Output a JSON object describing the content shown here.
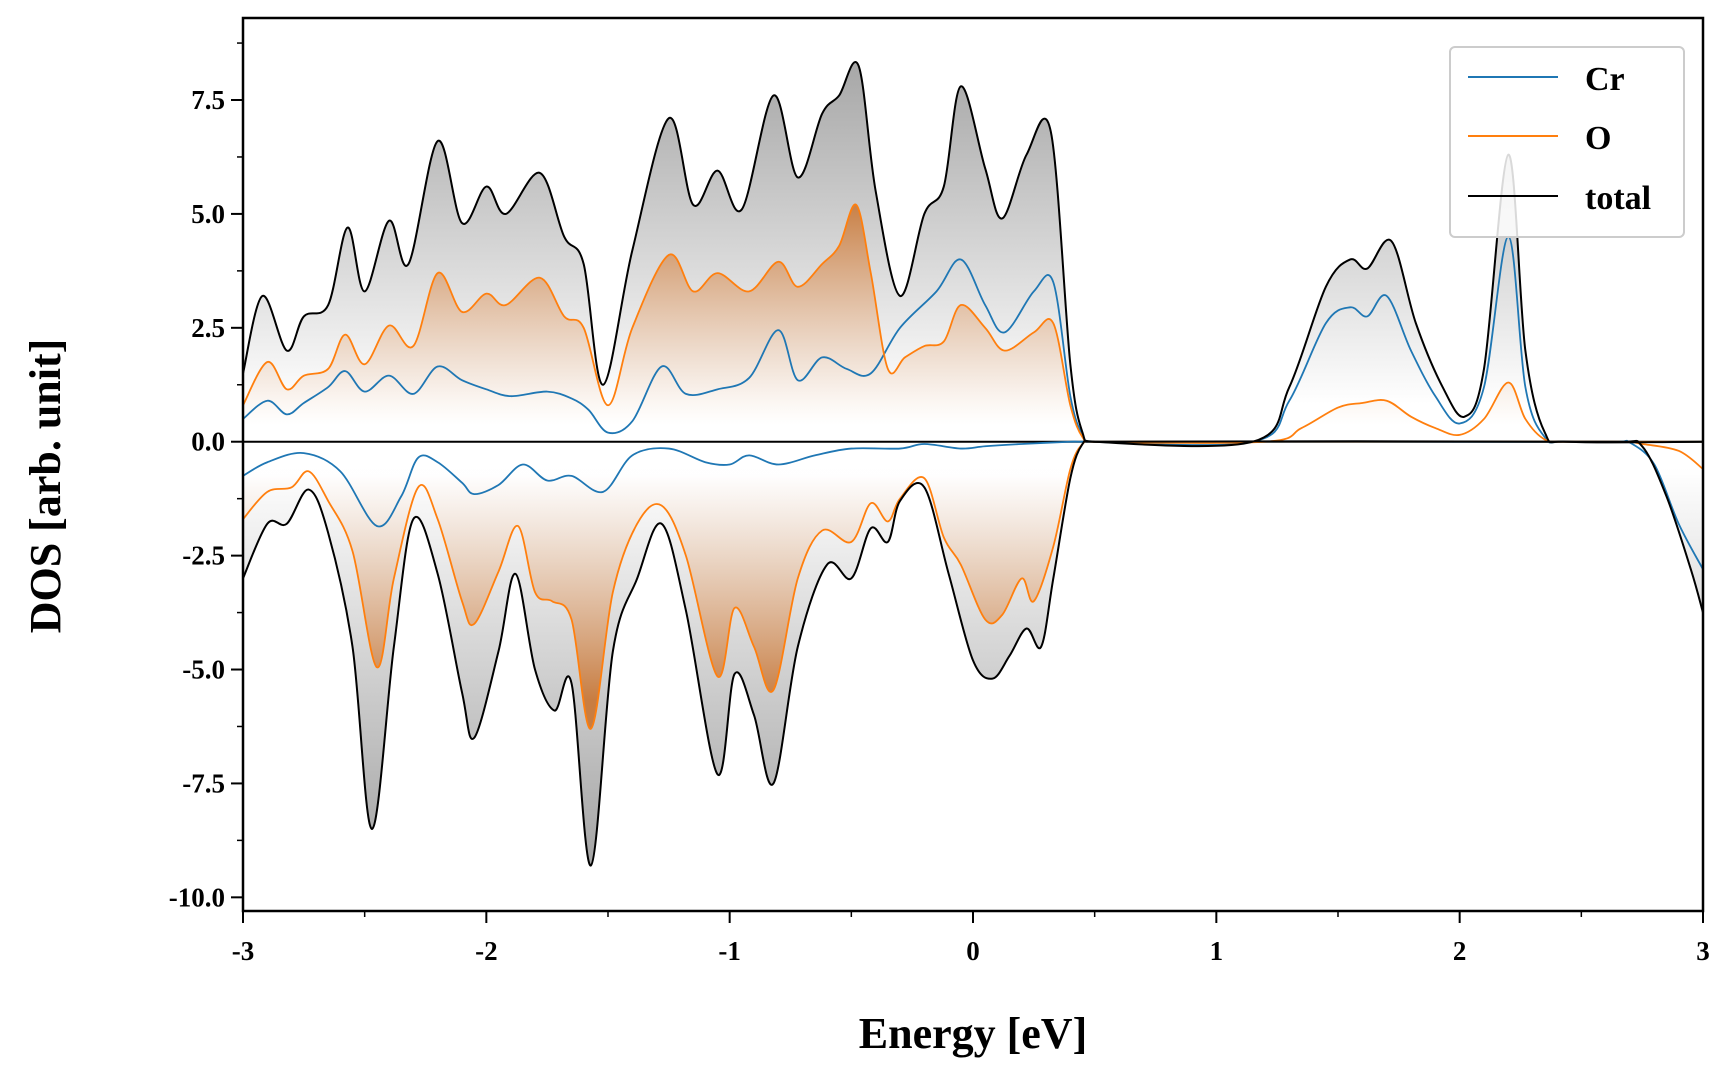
{
  "chart_data": {
    "type": "area",
    "xlabel": "Energy [eV]",
    "ylabel": "DOS [arb. unit]",
    "xlim": [
      -3,
      3
    ],
    "ylim": [
      -10.3,
      9.3
    ],
    "xticks": [
      -3,
      -2,
      -1,
      0,
      1,
      2,
      3
    ],
    "xtick_labels": [
      "-3",
      "-2",
      "-1",
      "0",
      "1",
      "2",
      "3"
    ],
    "yticks": [
      7.5,
      5.0,
      2.5,
      0.0,
      -2.5,
      -5.0,
      -7.5,
      -10.0
    ],
    "ytick_labels": [
      "7.5",
      "5.0",
      "2.5",
      "0.0",
      "-2.5",
      "-5.0",
      "-7.5",
      "-10.0"
    ],
    "legend_position": "top-right",
    "grid": false,
    "series": [
      {
        "name": "Cr",
        "color": "#1f77b4",
        "up": [
          [
            -3.0,
            0.5
          ],
          [
            -2.9,
            0.9
          ],
          [
            -2.82,
            0.6
          ],
          [
            -2.75,
            0.85
          ],
          [
            -2.65,
            1.2
          ],
          [
            -2.58,
            1.55
          ],
          [
            -2.5,
            1.1
          ],
          [
            -2.4,
            1.45
          ],
          [
            -2.3,
            1.05
          ],
          [
            -2.2,
            1.65
          ],
          [
            -2.1,
            1.35
          ],
          [
            -2.0,
            1.15
          ],
          [
            -1.9,
            1.0
          ],
          [
            -1.75,
            1.1
          ],
          [
            -1.65,
            0.95
          ],
          [
            -1.58,
            0.7
          ],
          [
            -1.5,
            0.2
          ],
          [
            -1.4,
            0.45
          ],
          [
            -1.28,
            1.65
          ],
          [
            -1.18,
            1.05
          ],
          [
            -1.05,
            1.15
          ],
          [
            -0.92,
            1.4
          ],
          [
            -0.8,
            2.45
          ],
          [
            -0.72,
            1.35
          ],
          [
            -0.62,
            1.85
          ],
          [
            -0.52,
            1.6
          ],
          [
            -0.42,
            1.5
          ],
          [
            -0.3,
            2.5
          ],
          [
            -0.15,
            3.3
          ],
          [
            -0.05,
            4.0
          ],
          [
            0.05,
            3.0
          ],
          [
            0.13,
            2.4
          ],
          [
            0.25,
            3.3
          ],
          [
            0.33,
            3.5
          ],
          [
            0.4,
            1.0
          ],
          [
            0.45,
            0.15
          ],
          [
            0.5,
            0.0
          ],
          [
            1.15,
            0.0
          ],
          [
            1.3,
            0.9
          ],
          [
            1.45,
            2.6
          ],
          [
            1.55,
            2.95
          ],
          [
            1.62,
            2.75
          ],
          [
            1.7,
            3.2
          ],
          [
            1.8,
            2.0
          ],
          [
            1.9,
            1.0
          ],
          [
            2.0,
            0.4
          ],
          [
            2.1,
            1.2
          ],
          [
            2.2,
            4.5
          ],
          [
            2.27,
            1.2
          ],
          [
            2.35,
            0.1
          ],
          [
            2.45,
            0.0
          ],
          [
            3.0,
            0.0
          ]
        ],
        "down": [
          [
            -3.0,
            -0.75
          ],
          [
            -2.9,
            -0.45
          ],
          [
            -2.75,
            -0.25
          ],
          [
            -2.6,
            -0.65
          ],
          [
            -2.45,
            -1.85
          ],
          [
            -2.35,
            -1.2
          ],
          [
            -2.28,
            -0.35
          ],
          [
            -2.2,
            -0.45
          ],
          [
            -2.1,
            -0.9
          ],
          [
            -2.05,
            -1.15
          ],
          [
            -1.95,
            -0.95
          ],
          [
            -1.85,
            -0.5
          ],
          [
            -1.75,
            -0.85
          ],
          [
            -1.65,
            -0.75
          ],
          [
            -1.52,
            -1.1
          ],
          [
            -1.4,
            -0.3
          ],
          [
            -1.25,
            -0.15
          ],
          [
            -1.1,
            -0.45
          ],
          [
            -1.0,
            -0.5
          ],
          [
            -0.92,
            -0.3
          ],
          [
            -0.8,
            -0.5
          ],
          [
            -0.65,
            -0.3
          ],
          [
            -0.5,
            -0.15
          ],
          [
            -0.3,
            -0.15
          ],
          [
            -0.2,
            -0.05
          ],
          [
            -0.05,
            -0.15
          ],
          [
            0.05,
            -0.1
          ],
          [
            0.2,
            -0.05
          ],
          [
            0.4,
            0.0
          ],
          [
            0.45,
            0.0
          ],
          [
            2.65,
            0.0
          ],
          [
            2.7,
            -0.02
          ],
          [
            2.8,
            -0.5
          ],
          [
            2.9,
            -1.8
          ],
          [
            3.0,
            -2.8
          ]
        ]
      },
      {
        "name": "O",
        "color": "#ff7f0e",
        "up": [
          [
            -3.0,
            0.8
          ],
          [
            -2.9,
            1.75
          ],
          [
            -2.82,
            1.15
          ],
          [
            -2.75,
            1.45
          ],
          [
            -2.65,
            1.6
          ],
          [
            -2.58,
            2.35
          ],
          [
            -2.5,
            1.7
          ],
          [
            -2.4,
            2.55
          ],
          [
            -2.3,
            2.1
          ],
          [
            -2.2,
            3.7
          ],
          [
            -2.1,
            2.85
          ],
          [
            -2.0,
            3.25
          ],
          [
            -1.92,
            3.0
          ],
          [
            -1.78,
            3.6
          ],
          [
            -1.68,
            2.75
          ],
          [
            -1.6,
            2.5
          ],
          [
            -1.5,
            0.8
          ],
          [
            -1.4,
            2.5
          ],
          [
            -1.25,
            4.1
          ],
          [
            -1.15,
            3.3
          ],
          [
            -1.05,
            3.7
          ],
          [
            -0.92,
            3.3
          ],
          [
            -0.8,
            3.95
          ],
          [
            -0.72,
            3.4
          ],
          [
            -0.62,
            3.9
          ],
          [
            -0.55,
            4.3
          ],
          [
            -0.48,
            5.2
          ],
          [
            -0.42,
            3.7
          ],
          [
            -0.35,
            1.6
          ],
          [
            -0.28,
            1.85
          ],
          [
            -0.2,
            2.1
          ],
          [
            -0.12,
            2.2
          ],
          [
            -0.05,
            3.0
          ],
          [
            0.05,
            2.5
          ],
          [
            0.13,
            2.0
          ],
          [
            0.25,
            2.4
          ],
          [
            0.33,
            2.6
          ],
          [
            0.4,
            0.8
          ],
          [
            0.45,
            0.1
          ],
          [
            0.5,
            0.0
          ],
          [
            1.2,
            0.0
          ],
          [
            1.35,
            0.3
          ],
          [
            1.5,
            0.75
          ],
          [
            1.6,
            0.85
          ],
          [
            1.7,
            0.9
          ],
          [
            1.8,
            0.55
          ],
          [
            1.9,
            0.3
          ],
          [
            2.0,
            0.15
          ],
          [
            2.1,
            0.5
          ],
          [
            2.2,
            1.3
          ],
          [
            2.27,
            0.5
          ],
          [
            2.35,
            0.05
          ],
          [
            2.45,
            0.0
          ],
          [
            3.0,
            0.0
          ]
        ],
        "down": [
          [
            -3.0,
            -1.7
          ],
          [
            -2.9,
            -1.1
          ],
          [
            -2.8,
            -1.0
          ],
          [
            -2.73,
            -0.65
          ],
          [
            -2.65,
            -1.3
          ],
          [
            -2.55,
            -2.4
          ],
          [
            -2.45,
            -4.95
          ],
          [
            -2.38,
            -3.0
          ],
          [
            -2.28,
            -1.0
          ],
          [
            -2.2,
            -1.7
          ],
          [
            -2.1,
            -3.5
          ],
          [
            -2.05,
            -4.0
          ],
          [
            -1.95,
            -2.85
          ],
          [
            -1.87,
            -1.85
          ],
          [
            -1.8,
            -3.3
          ],
          [
            -1.73,
            -3.5
          ],
          [
            -1.65,
            -3.9
          ],
          [
            -1.57,
            -6.3
          ],
          [
            -1.48,
            -3.3
          ],
          [
            -1.38,
            -1.8
          ],
          [
            -1.28,
            -1.4
          ],
          [
            -1.18,
            -2.5
          ],
          [
            -1.05,
            -5.15
          ],
          [
            -0.98,
            -3.65
          ],
          [
            -0.9,
            -4.5
          ],
          [
            -0.82,
            -5.45
          ],
          [
            -0.72,
            -3.0
          ],
          [
            -0.62,
            -1.95
          ],
          [
            -0.5,
            -2.2
          ],
          [
            -0.42,
            -1.35
          ],
          [
            -0.35,
            -1.75
          ],
          [
            -0.3,
            -1.25
          ],
          [
            -0.2,
            -0.8
          ],
          [
            -0.12,
            -2.1
          ],
          [
            -0.05,
            -2.7
          ],
          [
            0.05,
            -3.9
          ],
          [
            0.12,
            -3.8
          ],
          [
            0.2,
            -3.0
          ],
          [
            0.25,
            -3.5
          ],
          [
            0.33,
            -2.3
          ],
          [
            0.4,
            -0.6
          ],
          [
            0.45,
            -0.05
          ],
          [
            0.5,
            0.0
          ],
          [
            2.65,
            0.0
          ],
          [
            2.75,
            -0.05
          ],
          [
            2.9,
            -0.2
          ],
          [
            3.0,
            -0.6
          ]
        ]
      },
      {
        "name": "total",
        "color": "#000000",
        "up": [
          [
            -3.0,
            1.5
          ],
          [
            -2.92,
            3.2
          ],
          [
            -2.82,
            2.0
          ],
          [
            -2.75,
            2.75
          ],
          [
            -2.65,
            3.0
          ],
          [
            -2.57,
            4.7
          ],
          [
            -2.5,
            3.3
          ],
          [
            -2.4,
            4.85
          ],
          [
            -2.32,
            3.9
          ],
          [
            -2.2,
            6.6
          ],
          [
            -2.1,
            4.8
          ],
          [
            -2.0,
            5.6
          ],
          [
            -1.92,
            5.0
          ],
          [
            -1.78,
            5.9
          ],
          [
            -1.68,
            4.5
          ],
          [
            -1.6,
            3.9
          ],
          [
            -1.52,
            1.25
          ],
          [
            -1.4,
            4.2
          ],
          [
            -1.25,
            7.1
          ],
          [
            -1.15,
            5.2
          ],
          [
            -1.05,
            5.95
          ],
          [
            -0.95,
            5.1
          ],
          [
            -0.82,
            7.6
          ],
          [
            -0.72,
            5.8
          ],
          [
            -0.62,
            7.2
          ],
          [
            -0.55,
            7.6
          ],
          [
            -0.47,
            8.25
          ],
          [
            -0.4,
            5.5
          ],
          [
            -0.3,
            3.2
          ],
          [
            -0.2,
            5.0
          ],
          [
            -0.12,
            5.6
          ],
          [
            -0.05,
            7.8
          ],
          [
            0.05,
            6.0
          ],
          [
            0.12,
            4.9
          ],
          [
            0.22,
            6.3
          ],
          [
            0.32,
            6.8
          ],
          [
            0.4,
            1.7
          ],
          [
            0.45,
            0.2
          ],
          [
            0.5,
            0.0
          ],
          [
            1.15,
            0.0
          ],
          [
            1.3,
            1.2
          ],
          [
            1.45,
            3.4
          ],
          [
            1.55,
            4.0
          ],
          [
            1.62,
            3.8
          ],
          [
            1.72,
            4.4
          ],
          [
            1.82,
            2.6
          ],
          [
            1.93,
            1.2
          ],
          [
            2.02,
            0.55
          ],
          [
            2.1,
            1.6
          ],
          [
            2.2,
            6.3
          ],
          [
            2.27,
            2.0
          ],
          [
            2.35,
            0.2
          ],
          [
            2.45,
            0.0
          ],
          [
            3.0,
            0.0
          ]
        ],
        "down": [
          [
            -3.0,
            -3.0
          ],
          [
            -2.9,
            -1.8
          ],
          [
            -2.82,
            -1.8
          ],
          [
            -2.73,
            -1.05
          ],
          [
            -2.65,
            -2.0
          ],
          [
            -2.55,
            -4.5
          ],
          [
            -2.47,
            -8.5
          ],
          [
            -2.38,
            -4.5
          ],
          [
            -2.3,
            -1.7
          ],
          [
            -2.2,
            -2.9
          ],
          [
            -2.1,
            -5.5
          ],
          [
            -2.05,
            -6.5
          ],
          [
            -1.95,
            -4.6
          ],
          [
            -1.88,
            -2.9
          ],
          [
            -1.8,
            -5.0
          ],
          [
            -1.72,
            -5.9
          ],
          [
            -1.65,
            -5.3
          ],
          [
            -1.57,
            -9.3
          ],
          [
            -1.48,
            -4.6
          ],
          [
            -1.38,
            -3.0
          ],
          [
            -1.28,
            -1.8
          ],
          [
            -1.18,
            -3.7
          ],
          [
            -1.05,
            -7.3
          ],
          [
            -0.98,
            -5.1
          ],
          [
            -0.9,
            -6.0
          ],
          [
            -0.82,
            -7.5
          ],
          [
            -0.72,
            -4.5
          ],
          [
            -0.6,
            -2.7
          ],
          [
            -0.5,
            -3.0
          ],
          [
            -0.42,
            -1.9
          ],
          [
            -0.35,
            -2.2
          ],
          [
            -0.3,
            -1.3
          ],
          [
            -0.2,
            -1.0
          ],
          [
            -0.1,
            -2.9
          ],
          [
            0.0,
            -4.8
          ],
          [
            0.08,
            -5.2
          ],
          [
            0.15,
            -4.7
          ],
          [
            0.22,
            -4.1
          ],
          [
            0.28,
            -4.5
          ],
          [
            0.33,
            -3.0
          ],
          [
            0.4,
            -0.8
          ],
          [
            0.45,
            -0.05
          ],
          [
            0.5,
            0.0
          ],
          [
            2.65,
            0.0
          ],
          [
            2.75,
            -0.1
          ],
          [
            2.85,
            -1.2
          ],
          [
            2.95,
            -2.8
          ],
          [
            3.0,
            -3.75
          ]
        ]
      }
    ]
  }
}
